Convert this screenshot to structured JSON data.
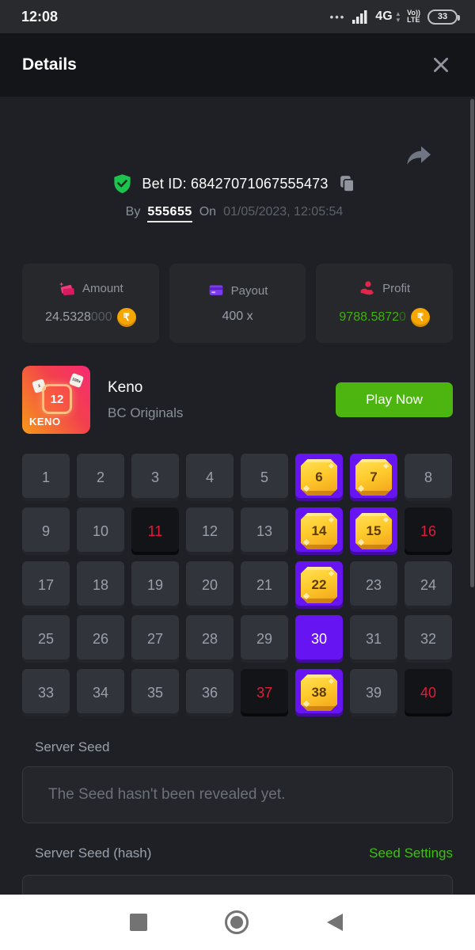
{
  "status_bar": {
    "time": "12:08",
    "dots": "•••",
    "network": "4G",
    "volte_top": "Vo))",
    "volte_bottom": "LTE",
    "battery": "33"
  },
  "header": {
    "title": "Details"
  },
  "bet": {
    "id_line": "Bet ID: 68427071067555473",
    "by_label": "By",
    "username": "555655",
    "on_label": "On",
    "datetime": "01/05/2023, 12:05:54"
  },
  "stats": {
    "amount": {
      "label": "Amount",
      "value": "24.5328",
      "value_dim": "000",
      "currency": "₹"
    },
    "payout": {
      "label": "Payout",
      "value": "400 x"
    },
    "profit": {
      "label": "Profit",
      "value": "9788.5872",
      "value_dim": "0",
      "currency": "₹"
    }
  },
  "game": {
    "name": "Keno",
    "provider": "BC Originals",
    "play_button": "Play Now",
    "tile": {
      "number": "12",
      "word": "KENO",
      "chip_left": "3",
      "chip_right": "100x"
    }
  },
  "keno": {
    "count": 40,
    "hit": [
      6,
      7,
      14,
      15,
      22,
      38
    ],
    "picked": [
      30
    ],
    "drawn": [
      11,
      16,
      37,
      40
    ]
  },
  "seed": {
    "server_seed_label": "Server Seed",
    "server_seed_value": "The Seed hasn't been revealed yet.",
    "hash_label": "Server Seed (hash)",
    "settings_link": "Seed Settings"
  },
  "colors": {
    "accent_purple": "#6615f2",
    "gem_gold": "#ffcb2d",
    "play_green": "#4cb50f",
    "link_green": "#3ec10e",
    "profit_green": "#41b009",
    "drawn_red": "#e11c3c",
    "coin_orange": "#f7a600"
  }
}
